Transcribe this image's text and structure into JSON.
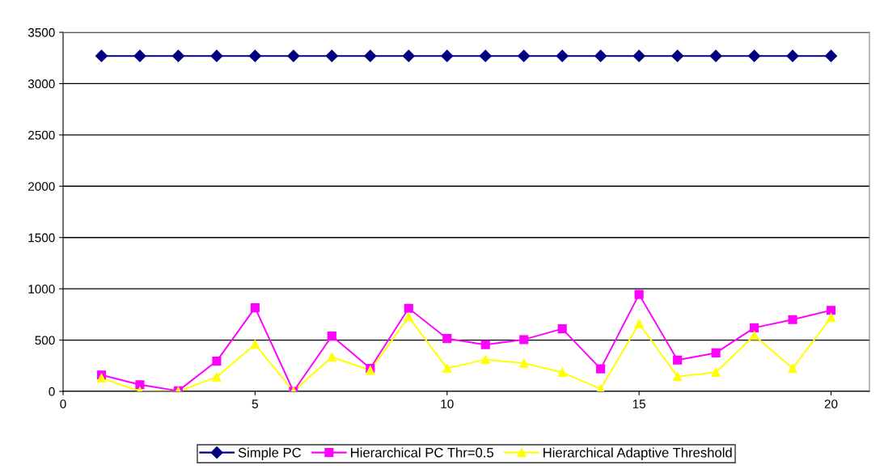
{
  "chart_data": {
    "type": "line",
    "x": [
      1,
      2,
      3,
      4,
      5,
      6,
      7,
      8,
      9,
      10,
      11,
      12,
      13,
      14,
      15,
      16,
      17,
      18,
      19,
      20
    ],
    "series": [
      {
        "name": "Simple PC",
        "color": "#000080",
        "marker": "diamond",
        "values": [
          3270,
          3270,
          3270,
          3270,
          3270,
          3270,
          3270,
          3270,
          3270,
          3270,
          3270,
          3270,
          3270,
          3270,
          3270,
          3270,
          3270,
          3270,
          3270,
          3270
        ]
      },
      {
        "name": "Hierarchical PC Thr=0.5",
        "color": "#ff00ff",
        "marker": "square",
        "values": [
          160,
          65,
          5,
          295,
          815,
          0,
          540,
          225,
          810,
          515,
          455,
          505,
          610,
          220,
          945,
          305,
          375,
          620,
          700,
          790
        ]
      },
      {
        "name": "Hierarchical Adaptive Threshold",
        "color": "#ffff00",
        "marker": "triangle",
        "values": [
          130,
          0,
          0,
          140,
          460,
          0,
          335,
          205,
          725,
          225,
          310,
          275,
          185,
          25,
          660,
          145,
          185,
          545,
          225,
          720
        ]
      }
    ],
    "xlim": [
      0,
      21
    ],
    "xticks": [
      0,
      5,
      10,
      15,
      20
    ],
    "ylim": [
      0,
      3500
    ],
    "yticks": [
      0,
      500,
      1000,
      1500,
      2000,
      2500,
      3000,
      3500
    ],
    "grid": "y",
    "legend": "bottom",
    "line_style": "solid"
  }
}
